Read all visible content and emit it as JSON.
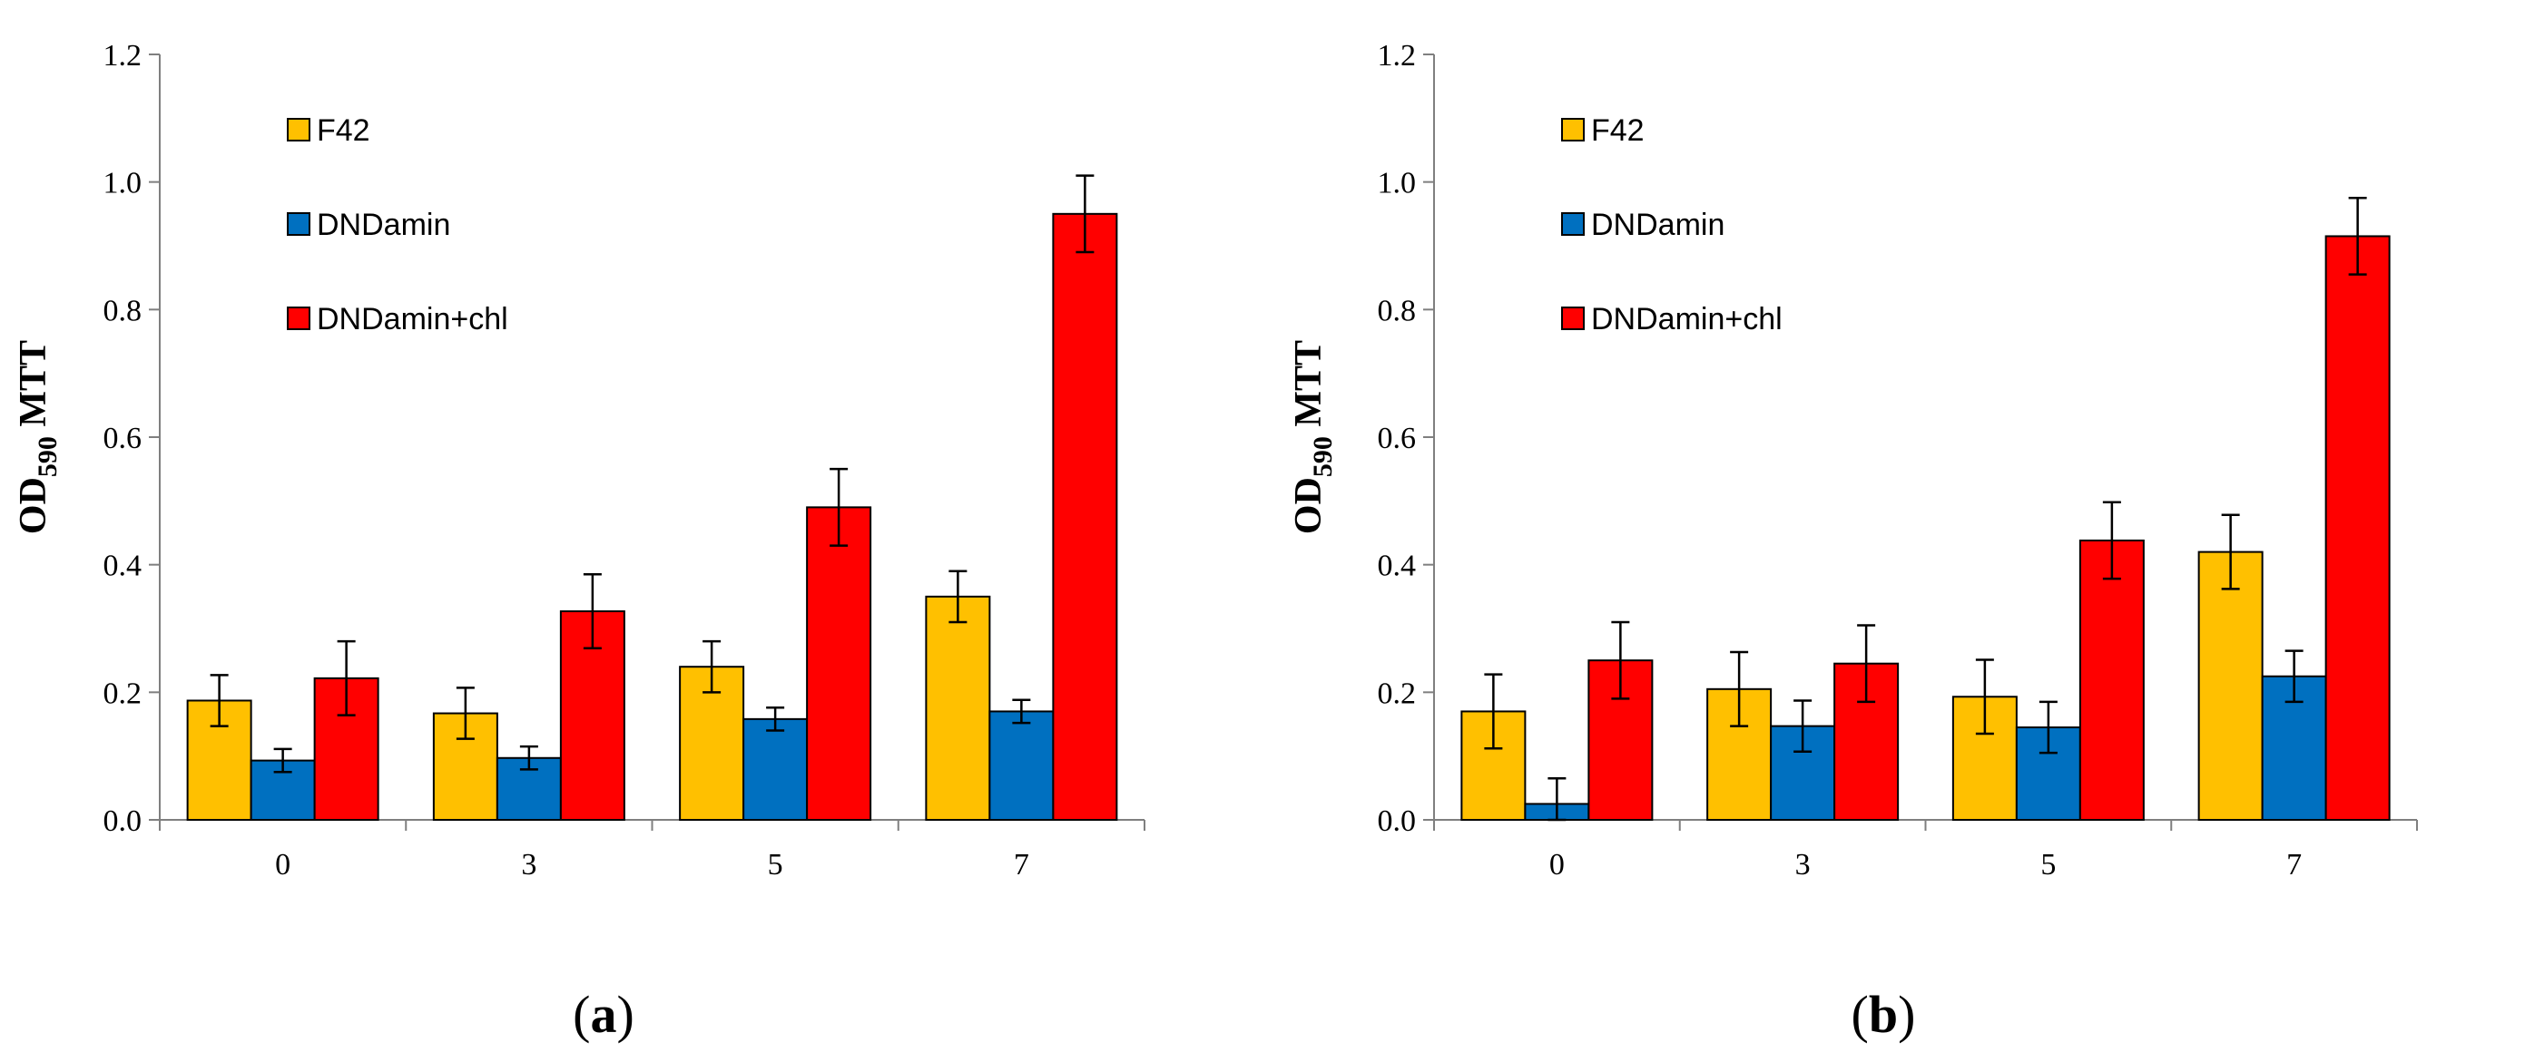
{
  "chart_data": [
    {
      "type": "bar",
      "panel_label": "a",
      "categories": [
        "0",
        "3",
        "5",
        "7"
      ],
      "ylabel_main": "OD",
      "ylabel_sub": "590",
      "ylabel_rest": " MTT",
      "ylim": [
        0,
        1.2
      ],
      "yticks": [
        "0.0",
        "0.2",
        "0.4",
        "0.6",
        "0.8",
        "1.0",
        "1.2"
      ],
      "legend_position": "top-left",
      "series": [
        {
          "name": "F42",
          "color": "#FFC000",
          "values": [
            0.187,
            0.167,
            0.24,
            0.35
          ],
          "errors": [
            0.04,
            0.04,
            0.04,
            0.04
          ]
        },
        {
          "name": "DNDamin",
          "color": "#0070C0",
          "values": [
            0.093,
            0.097,
            0.158,
            0.17
          ],
          "errors": [
            0.018,
            0.018,
            0.018,
            0.018
          ]
        },
        {
          "name": "DNDamin+chl",
          "color": "#FF0000",
          "values": [
            0.222,
            0.327,
            0.49,
            0.95
          ],
          "errors": [
            0.058,
            0.058,
            0.06,
            0.06
          ]
        }
      ]
    },
    {
      "type": "bar",
      "panel_label": "b",
      "categories": [
        "0",
        "3",
        "5",
        "7"
      ],
      "ylabel_main": "OD",
      "ylabel_sub": "590",
      "ylabel_rest": " MTT",
      "ylim": [
        0,
        1.2
      ],
      "yticks": [
        "0.0",
        "0.2",
        "0.4",
        "0.6",
        "0.8",
        "1.0",
        "1.2"
      ],
      "legend_position": "top-left",
      "series": [
        {
          "name": "F42",
          "color": "#FFC000",
          "values": [
            0.17,
            0.205,
            0.193,
            0.42
          ],
          "errors": [
            0.058,
            0.058,
            0.058,
            0.058
          ]
        },
        {
          "name": "DNDamin",
          "color": "#0070C0",
          "values": [
            0.025,
            0.147,
            0.145,
            0.225
          ],
          "errors": [
            0.04,
            0.04,
            0.04,
            0.04
          ]
        },
        {
          "name": "DNDamin+chl",
          "color": "#FF0000",
          "values": [
            0.25,
            0.245,
            0.438,
            0.915
          ],
          "errors": [
            0.06,
            0.06,
            0.06,
            0.06
          ]
        }
      ]
    }
  ]
}
